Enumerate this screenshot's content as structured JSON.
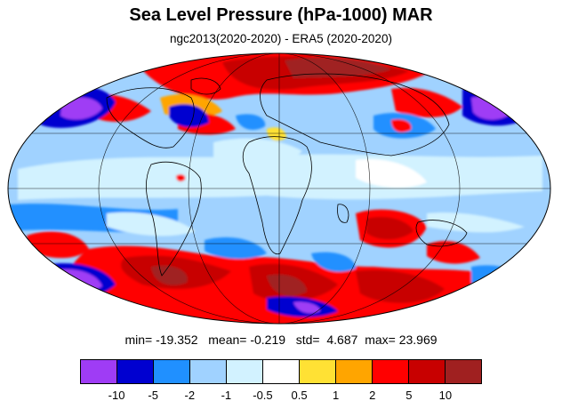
{
  "title": "Sea Level Pressure (hPa-1000) MAR",
  "subtitle": "ngc2013(2020-2020) - ERA5 (2020-2020)",
  "stats": {
    "min_label": "min=",
    "min": "-19.352",
    "mean_label": "mean=",
    "mean": "-0.219",
    "std_label": "std=",
    "std": "4.687",
    "max_label": "max=",
    "max": "23.969"
  },
  "colorbar": {
    "colors": [
      "#9f3cf5",
      "#0000d0",
      "#2090ff",
      "#a0d2ff",
      "#d2f2ff",
      "#ffffff",
      "#ffe134",
      "#ffa500",
      "#ff0000",
      "#c80000",
      "#a02020"
    ],
    "labels": [
      "-10",
      "-5",
      "-2",
      "-1",
      "-0.5",
      "0.5",
      "1",
      "2",
      "5",
      "10"
    ]
  }
}
